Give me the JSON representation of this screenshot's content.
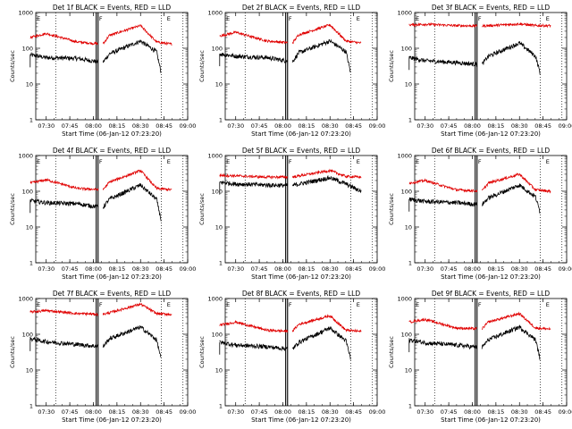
{
  "chart_data": [
    {
      "type": "line",
      "title": "Det 1f BLACK = Events, RED = LLD",
      "xlabel": "Start Time (06-Jan-12 07:23:20)",
      "ylabel": "Counts/sec",
      "yscale": "log",
      "ylim": [
        1,
        1000
      ],
      "xlim": [
        "07:23:20",
        "09:00"
      ],
      "x_ticks": [
        "07:30",
        "07:45",
        "08:00",
        "08:15",
        "08:30",
        "08:45",
        "09:00"
      ],
      "y_ticks": [
        "1",
        "10",
        "100",
        "1000"
      ],
      "markers": [
        "E",
        "F",
        "E"
      ],
      "series": [
        {
          "color": "#000000",
          "shape": [
            [
              7.33,
              65
            ],
            [
              7.5,
              55
            ],
            [
              7.83,
              52
            ],
            [
              8.1,
              40
            ],
            [
              8.17,
              70
            ],
            [
              8.5,
              160
            ],
            [
              8.67,
              80
            ],
            [
              8.72,
              20
            ]
          ]
        },
        {
          "color": "#e00000",
          "shape": [
            [
              7.33,
              200
            ],
            [
              7.5,
              260
            ],
            [
              7.83,
              150
            ],
            [
              8.1,
              130
            ],
            [
              8.17,
              230
            ],
            [
              8.5,
              430
            ],
            [
              8.67,
              150
            ],
            [
              8.83,
              130
            ]
          ]
        }
      ]
    },
    {
      "type": "line",
      "title": "Det 2f BLACK = Events, RED = LLD",
      "xlabel": "Start Time (06-Jan-12 07:23:20)",
      "ylabel": "Counts/sec",
      "yscale": "log",
      "ylim": [
        1,
        1000
      ],
      "xlim": [
        "07:23:20",
        "09:00"
      ],
      "x_ticks": [
        "07:30",
        "07:45",
        "08:00",
        "08:15",
        "08:30",
        "08:45",
        "09:00"
      ],
      "y_ticks": [
        "1",
        "10",
        "100",
        "1000"
      ],
      "markers": [
        "E",
        "F",
        "E"
      ],
      "series": [
        {
          "color": "#000000",
          "shape": [
            [
              7.33,
              70
            ],
            [
              7.5,
              60
            ],
            [
              7.83,
              55
            ],
            [
              8.1,
              42
            ],
            [
              8.17,
              75
            ],
            [
              8.5,
              160
            ],
            [
              8.67,
              80
            ],
            [
              8.72,
              20
            ]
          ]
        },
        {
          "color": "#e00000",
          "shape": [
            [
              7.33,
              220
            ],
            [
              7.5,
              280
            ],
            [
              7.83,
              160
            ],
            [
              8.1,
              140
            ],
            [
              8.17,
              240
            ],
            [
              8.5,
              450
            ],
            [
              8.67,
              160
            ],
            [
              8.83,
              140
            ]
          ]
        }
      ]
    },
    {
      "type": "line",
      "title": "Det 3f BLACK = Events, RED = LLD",
      "xlabel": "Start Time (06-Jan-12 07:23:20)",
      "ylabel": "Counts/sec",
      "yscale": "log",
      "ylim": [
        1,
        1000
      ],
      "xlim": [
        "07:23:20",
        "09:00"
      ],
      "x_ticks": [
        "07:30",
        "07:45",
        "08:00",
        "08:15",
        "08:30",
        "08:45",
        "09:00"
      ],
      "y_ticks": [
        "1",
        "10",
        "100",
        "1000"
      ],
      "markers": [
        "E",
        "F",
        "E"
      ],
      "series": [
        {
          "color": "#000000",
          "shape": [
            [
              7.33,
              55
            ],
            [
              7.5,
              45
            ],
            [
              7.83,
              40
            ],
            [
              8.1,
              35
            ],
            [
              8.17,
              60
            ],
            [
              8.5,
              140
            ],
            [
              8.67,
              60
            ],
            [
              8.72,
              20
            ]
          ]
        },
        {
          "color": "#e00000",
          "shape": [
            [
              7.33,
              450
            ],
            [
              7.5,
              470
            ],
            [
              7.83,
              430
            ],
            [
              8.1,
              420
            ],
            [
              8.17,
              430
            ],
            [
              8.5,
              480
            ],
            [
              8.67,
              430
            ],
            [
              8.83,
              430
            ]
          ]
        }
      ]
    },
    {
      "type": "line",
      "title": "Det 4f BLACK = Events, RED = LLD",
      "xlabel": "Start Time (06-Jan-12 07:23:20)",
      "ylabel": "Counts/sec",
      "yscale": "log",
      "ylim": [
        1,
        1000
      ],
      "xlim": [
        "07:23:20",
        "09:00"
      ],
      "x_ticks": [
        "07:30",
        "07:45",
        "08:00",
        "08:15",
        "08:30",
        "08:45",
        "09:00"
      ],
      "y_ticks": [
        "1",
        "10",
        "100",
        "1000"
      ],
      "markers": [
        "E",
        "F",
        "E"
      ],
      "series": [
        {
          "color": "#000000",
          "shape": [
            [
              7.33,
              55
            ],
            [
              7.5,
              48
            ],
            [
              7.83,
              45
            ],
            [
              8.1,
              35
            ],
            [
              8.17,
              60
            ],
            [
              8.5,
              150
            ],
            [
              8.67,
              60
            ],
            [
              8.72,
              15
            ]
          ]
        },
        {
          "color": "#e00000",
          "shape": [
            [
              7.33,
              170
            ],
            [
              7.5,
              210
            ],
            [
              7.83,
              120
            ],
            [
              8.1,
              110
            ],
            [
              8.17,
              180
            ],
            [
              8.5,
              380
            ],
            [
              8.67,
              120
            ],
            [
              8.83,
              110
            ]
          ]
        }
      ]
    },
    {
      "type": "line",
      "title": "Det 5f BLACK = Events, RED = LLD",
      "xlabel": "Start Time (06-Jan-12 07:23:20)",
      "ylabel": "Counts/sec",
      "yscale": "log",
      "ylim": [
        1,
        1000
      ],
      "xlim": [
        "07:23:20",
        "09:00"
      ],
      "x_ticks": [
        "07:30",
        "07:45",
        "08:00",
        "08:15",
        "08:30",
        "08:45",
        "09:00"
      ],
      "y_ticks": [
        "1",
        "10",
        "100",
        "1000"
      ],
      "markers": [
        "E",
        "F",
        "E"
      ],
      "series": [
        {
          "color": "#000000",
          "shape": [
            [
              7.33,
              180
            ],
            [
              7.5,
              160
            ],
            [
              7.83,
              150
            ],
            [
              8.1,
              145
            ],
            [
              8.17,
              160
            ],
            [
              8.5,
              240
            ],
            [
              8.67,
              160
            ],
            [
              8.83,
              100
            ]
          ]
        },
        {
          "color": "#e00000",
          "shape": [
            [
              7.33,
              280
            ],
            [
              7.5,
              270
            ],
            [
              7.83,
              250
            ],
            [
              8.1,
              250
            ],
            [
              8.17,
              270
            ],
            [
              8.5,
              380
            ],
            [
              8.67,
              260
            ],
            [
              8.83,
              250
            ]
          ]
        }
      ]
    },
    {
      "type": "line",
      "title": "Det 6f BLACK = Events, RED = LLD",
      "xlabel": "Start Time (06-Jan-12 07:23:20)",
      "ylabel": "Counts/sec",
      "yscale": "log",
      "ylim": [
        1,
        1000
      ],
      "xlim": [
        "07:23:20",
        "09:00"
      ],
      "x_ticks": [
        "07:30",
        "07:45",
        "08:00",
        "08:15",
        "08:30",
        "08:45",
        "09:00"
      ],
      "y_ticks": [
        "1",
        "10",
        "100",
        "1000"
      ],
      "markers": [
        "E",
        "F",
        "E"
      ],
      "series": [
        {
          "color": "#000000",
          "shape": [
            [
              7.33,
              60
            ],
            [
              7.5,
              52
            ],
            [
              7.83,
              48
            ],
            [
              8.1,
              42
            ],
            [
              8.17,
              65
            ],
            [
              8.5,
              150
            ],
            [
              8.67,
              70
            ],
            [
              8.72,
              25
            ]
          ]
        },
        {
          "color": "#e00000",
          "shape": [
            [
              7.33,
              170
            ],
            [
              7.5,
              200
            ],
            [
              7.83,
              110
            ],
            [
              8.1,
              100
            ],
            [
              8.17,
              170
            ],
            [
              8.5,
              300
            ],
            [
              8.67,
              110
            ],
            [
              8.83,
              100
            ]
          ]
        }
      ]
    },
    {
      "type": "line",
      "title": "Det 7f BLACK = Events, RED = LLD",
      "xlabel": "Start Time (06-Jan-12 07:23:20)",
      "ylabel": "Counts/sec",
      "yscale": "log",
      "ylim": [
        1,
        1000
      ],
      "xlim": [
        "07:23:20",
        "09:00"
      ],
      "x_ticks": [
        "07:30",
        "07:45",
        "08:00",
        "08:15",
        "08:30",
        "08:45",
        "09:00"
      ],
      "y_ticks": [
        "1",
        "10",
        "100",
        "1000"
      ],
      "markers": [
        "E",
        "F",
        "E"
      ],
      "series": [
        {
          "color": "#000000",
          "shape": [
            [
              7.33,
              75
            ],
            [
              7.5,
              62
            ],
            [
              7.83,
              52
            ],
            [
              8.1,
              45
            ],
            [
              8.17,
              75
            ],
            [
              8.5,
              160
            ],
            [
              8.67,
              70
            ],
            [
              8.72,
              20
            ]
          ]
        },
        {
          "color": "#e00000",
          "shape": [
            [
              7.33,
              420
            ],
            [
              7.5,
              460
            ],
            [
              7.83,
              380
            ],
            [
              8.1,
              360
            ],
            [
              8.17,
              400
            ],
            [
              8.5,
              700
            ],
            [
              8.67,
              380
            ],
            [
              8.83,
              360
            ]
          ]
        }
      ]
    },
    {
      "type": "line",
      "title": "Det 8f BLACK = Events, RED = LLD",
      "xlabel": "Start Time (06-Jan-12 07:23:20)",
      "ylabel": "Counts/sec",
      "yscale": "log",
      "ylim": [
        1,
        1000
      ],
      "xlim": [
        "07:23:20",
        "09:00"
      ],
      "x_ticks": [
        "07:30",
        "07:45",
        "08:00",
        "08:15",
        "08:30",
        "08:45",
        "09:00"
      ],
      "y_ticks": [
        "1",
        "10",
        "100",
        "1000"
      ],
      "markers": [
        "E",
        "F",
        "E"
      ],
      "series": [
        {
          "color": "#000000",
          "shape": [
            [
              7.33,
              60
            ],
            [
              7.5,
              50
            ],
            [
              7.83,
              45
            ],
            [
              8.1,
              38
            ],
            [
              8.17,
              60
            ],
            [
              8.5,
              150
            ],
            [
              8.67,
              65
            ],
            [
              8.72,
              20
            ]
          ]
        },
        {
          "color": "#e00000",
          "shape": [
            [
              7.33,
              180
            ],
            [
              7.5,
              220
            ],
            [
              7.83,
              130
            ],
            [
              8.1,
              120
            ],
            [
              8.17,
              190
            ],
            [
              8.5,
              330
            ],
            [
              8.67,
              130
            ],
            [
              8.83,
              120
            ]
          ]
        }
      ]
    },
    {
      "type": "line",
      "title": "Det 9f BLACK = Events, RED = LLD",
      "xlabel": "Start Time (06-Jan-12 07:23:20)",
      "ylabel": "Counts/sec",
      "yscale": "log",
      "ylim": [
        1,
        1000
      ],
      "xlim": [
        "07:23:20",
        "09:00"
      ],
      "x_ticks": [
        "07:30",
        "07:45",
        "08:00",
        "08:15",
        "08:30",
        "08:45",
        "09:00"
      ],
      "y_ticks": [
        "1",
        "10",
        "100",
        "1000"
      ],
      "markers": [
        "E",
        "F",
        "E"
      ],
      "series": [
        {
          "color": "#000000",
          "shape": [
            [
              7.33,
              70
            ],
            [
              7.5,
              58
            ],
            [
              7.83,
              50
            ],
            [
              8.1,
              42
            ],
            [
              8.17,
              70
            ],
            [
              8.5,
              160
            ],
            [
              8.67,
              70
            ],
            [
              8.72,
              20
            ]
          ]
        },
        {
          "color": "#e00000",
          "shape": [
            [
              7.33,
              220
            ],
            [
              7.5,
              260
            ],
            [
              7.83,
              150
            ],
            [
              8.1,
              140
            ],
            [
              8.17,
              220
            ],
            [
              8.5,
              380
            ],
            [
              8.67,
              150
            ],
            [
              8.83,
              140
            ]
          ]
        }
      ]
    }
  ],
  "marker_times": [
    7.6,
    8.03,
    8.05,
    8.72,
    8.95
  ]
}
